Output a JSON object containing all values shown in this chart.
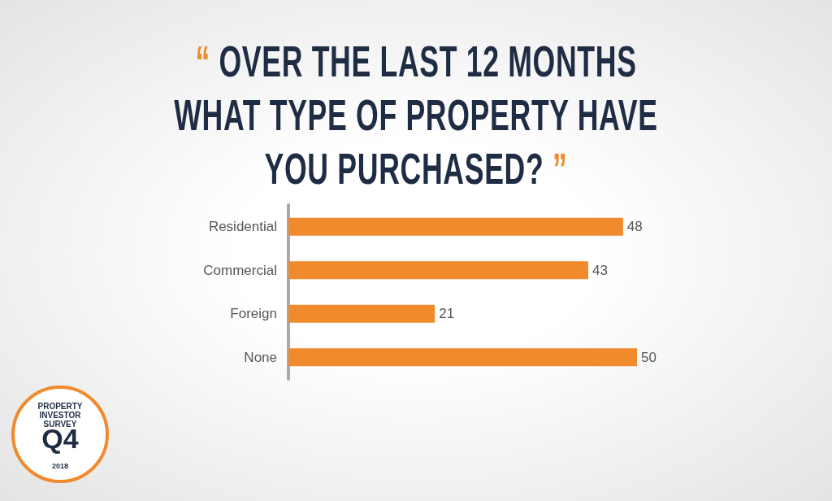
{
  "chart_data": {
    "type": "bar",
    "orientation": "horizontal",
    "title": "“ OVER THE LAST 12 MONTHS WHAT TYPE OF PROPERTY HAVE YOU PURCHASED? ”",
    "categories": [
      "Residential",
      "Commercial",
      "Foreign",
      "None"
    ],
    "values": [
      48,
      43,
      21,
      50
    ],
    "color": "#f08a2c",
    "data_labels": true,
    "annotations": [
      "PROPERTY INVESTOR SURVEY",
      "Q4",
      "2018"
    ]
  }
}
